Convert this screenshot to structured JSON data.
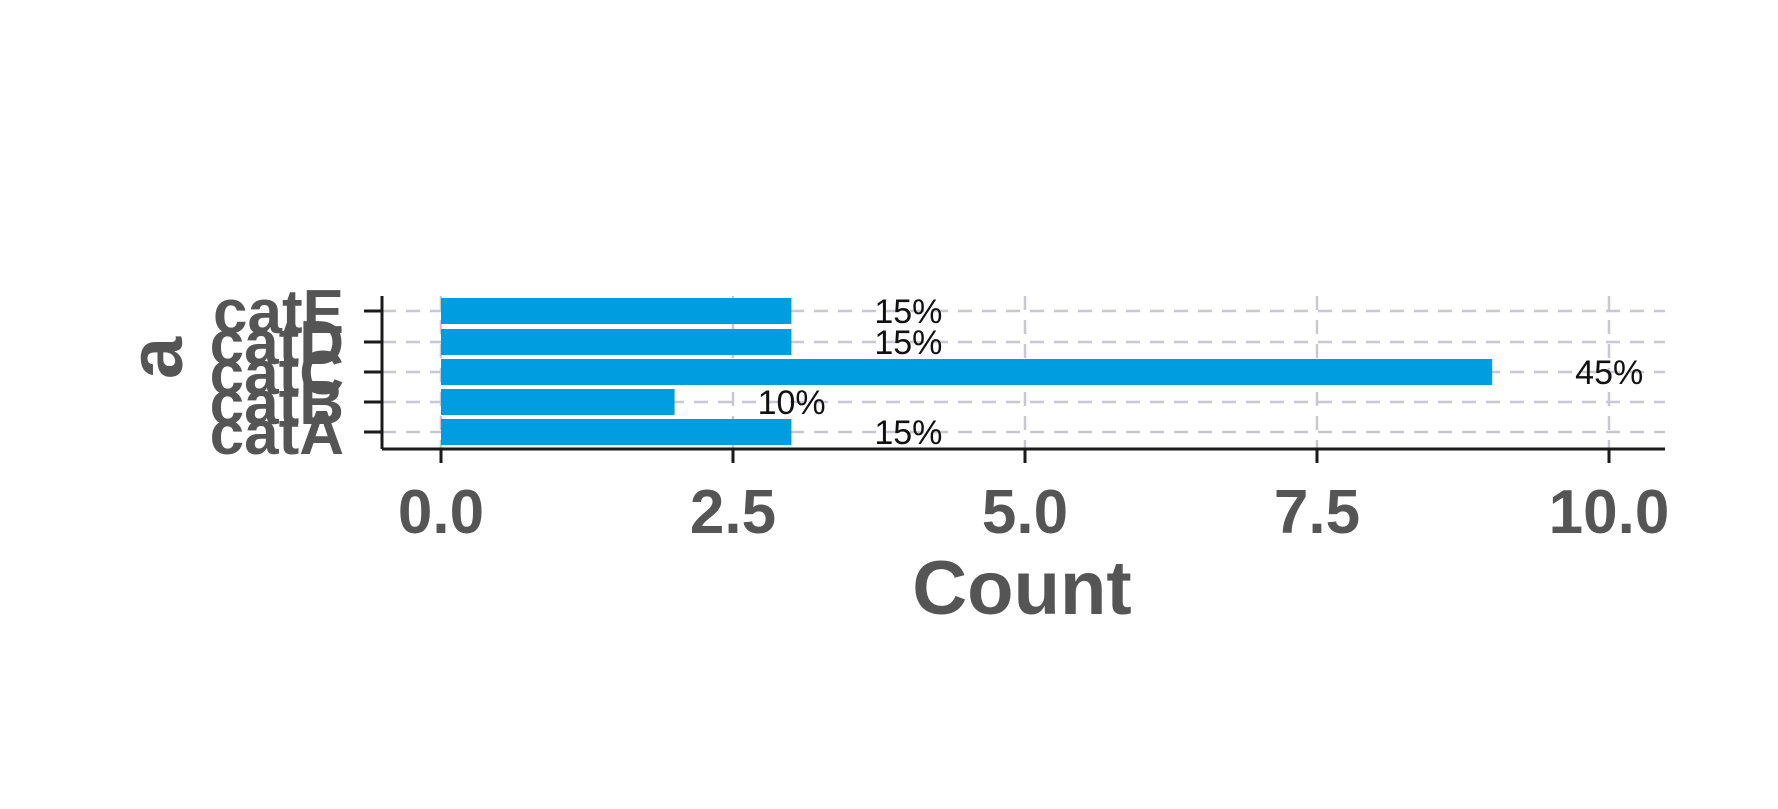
{
  "chart_data": {
    "type": "bar",
    "orientation": "horizontal",
    "categories": [
      "catA",
      "catB",
      "catC",
      "catD",
      "catE"
    ],
    "values": [
      3,
      2,
      9,
      3,
      3
    ],
    "bar_labels": [
      "15%",
      "10%",
      "45%",
      "15%",
      "15%"
    ],
    "xlabel": "Count",
    "ylabel": "a",
    "xlim": [
      0,
      10.5
    ],
    "xticks": [
      "0.0",
      "2.5",
      "5.0",
      "7.5",
      "10.0"
    ],
    "grid": true,
    "bar_color": "#009ee0"
  }
}
